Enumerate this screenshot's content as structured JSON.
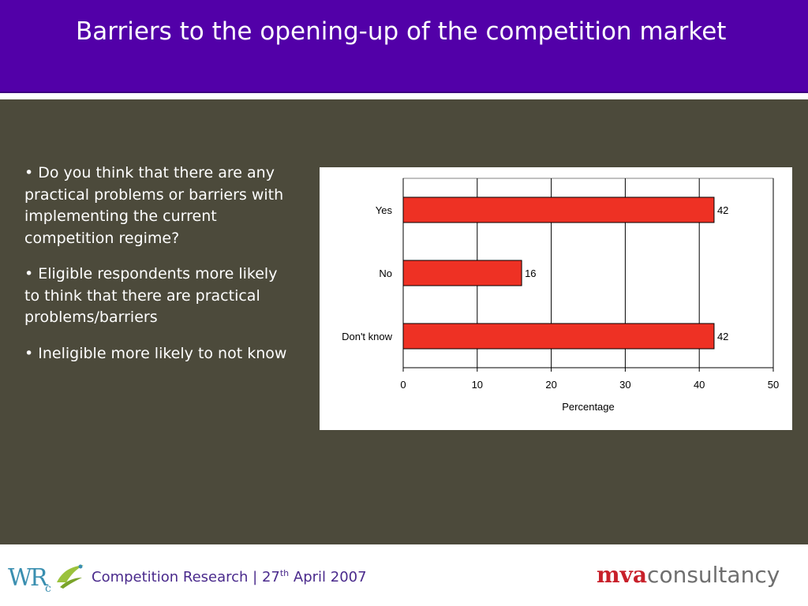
{
  "slide": {
    "title": "Barriers to the opening-up of the competition market",
    "bullets": [
      "• Do you think that there are any practical problems or barriers with implementing the current competition regime?",
      "• Eligible respondents more likely to think that there are practical problems/barriers",
      "• Ineligible more likely to not know"
    ]
  },
  "footer": {
    "text_before": "Competition Research | 27",
    "superscript": "th",
    "text_after": " April 2007",
    "left_logo": {
      "label": "WRc",
      "icon": "wrc-logo-icon"
    },
    "right_logo": {
      "red_part": "mva",
      "grey_part": "consultancy"
    }
  },
  "colors": {
    "title_bar": "#5200a8",
    "body_background": "#4c4a3b",
    "bar_fill": "#ee3124",
    "footer_text": "#4a2a8c",
    "mva_red": "#c8202a"
  },
  "chart_data": {
    "type": "bar",
    "orientation": "horizontal",
    "categories": [
      "Yes",
      "No",
      "Don't know"
    ],
    "values": [
      42,
      16,
      42
    ],
    "data_labels": [
      "42",
      "16",
      "42"
    ],
    "xlabel": "Percentage",
    "ylabel": "",
    "xlim": [
      0,
      50
    ],
    "xticks": [
      0,
      10,
      20,
      30,
      40,
      50
    ],
    "grid": "vertical major gridlines",
    "legend": "none"
  }
}
